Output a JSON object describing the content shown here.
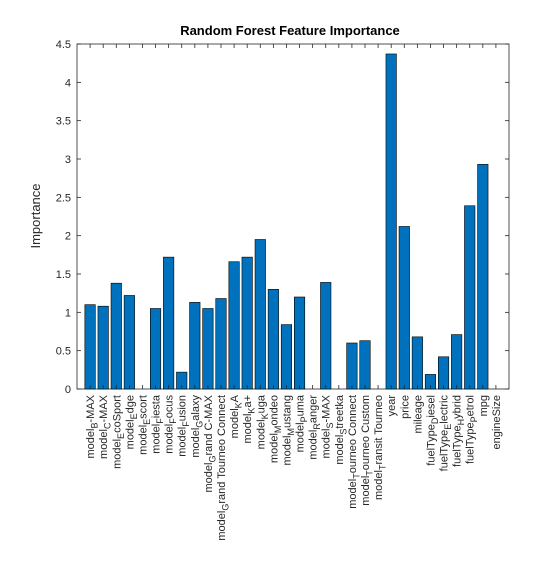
{
  "chart_data": {
    "type": "bar",
    "title": "Random Forest Feature Importance",
    "xlabel": "",
    "ylabel": "Importance",
    "ylim": [
      0,
      4.5
    ],
    "yticks": [
      0,
      0.5,
      1,
      1.5,
      2,
      2.5,
      3,
      3.5,
      4,
      4.5
    ],
    "ytick_labels": [
      "0",
      "0.5",
      "1",
      "1.5",
      "2",
      "2.5",
      "3",
      "3.5",
      "4",
      "4.5"
    ],
    "grid": false,
    "bar_color": "#0072BD",
    "categories": [
      {
        "base": "model",
        "sub": "B",
        "rest": "-MAX"
      },
      {
        "base": "model",
        "sub": "C",
        "rest": "-MAX"
      },
      {
        "base": "model",
        "sub": "E",
        "rest": "coSport"
      },
      {
        "base": "model",
        "sub": "E",
        "rest": "dge"
      },
      {
        "base": "model",
        "sub": "E",
        "rest": "scort"
      },
      {
        "base": "model",
        "sub": "F",
        "rest": "iesta"
      },
      {
        "base": "model",
        "sub": "F",
        "rest": "ocus"
      },
      {
        "base": "model",
        "sub": "F",
        "rest": "usion"
      },
      {
        "base": "model",
        "sub": "G",
        "rest": "alaxy"
      },
      {
        "base": "model",
        "sub": "G",
        "rest": "rand C-MAX"
      },
      {
        "base": "model",
        "sub": "G",
        "rest": "rand Tourneo Connect"
      },
      {
        "base": "model",
        "sub": "K",
        "rest": "A"
      },
      {
        "base": "model",
        "sub": "K",
        "rest": "a+"
      },
      {
        "base": "model",
        "sub": "K",
        "rest": "uga"
      },
      {
        "base": "model",
        "sub": "M",
        "rest": "ondeo"
      },
      {
        "base": "model",
        "sub": "M",
        "rest": "ustang"
      },
      {
        "base": "model",
        "sub": "P",
        "rest": "uma"
      },
      {
        "base": "model",
        "sub": "R",
        "rest": "anger"
      },
      {
        "base": "model",
        "sub": "S",
        "rest": "-MAX"
      },
      {
        "base": "model",
        "sub": "S",
        "rest": "treetka"
      },
      {
        "base": "model",
        "sub": "T",
        "rest": "ourneo Connect"
      },
      {
        "base": "model",
        "sub": "T",
        "rest": "ourneo Custom"
      },
      {
        "base": "model",
        "sub": "T",
        "rest": "ransit Tourneo"
      },
      {
        "base": "year",
        "sub": "",
        "rest": ""
      },
      {
        "base": "price",
        "sub": "",
        "rest": ""
      },
      {
        "base": "mileage",
        "sub": "",
        "rest": ""
      },
      {
        "base": "fuelType",
        "sub": "D",
        "rest": "iesel"
      },
      {
        "base": "fuelType",
        "sub": "E",
        "rest": "lectric"
      },
      {
        "base": "fuelType",
        "sub": "H",
        "rest": "ybrid"
      },
      {
        "base": "fuelType",
        "sub": "P",
        "rest": "etrol"
      },
      {
        "base": "mpg",
        "sub": "",
        "rest": ""
      },
      {
        "base": "engineSize",
        "sub": "",
        "rest": ""
      }
    ],
    "values": [
      1.1,
      1.08,
      1.38,
      1.22,
      0,
      1.05,
      1.72,
      0.22,
      1.13,
      1.05,
      1.18,
      1.66,
      1.72,
      1.95,
      1.3,
      0.84,
      1.2,
      0,
      1.39,
      0,
      0.6,
      0.63,
      0,
      4.37,
      2.12,
      0.68,
      0.19,
      0.42,
      0.71,
      2.39,
      2.93,
      0
    ]
  }
}
